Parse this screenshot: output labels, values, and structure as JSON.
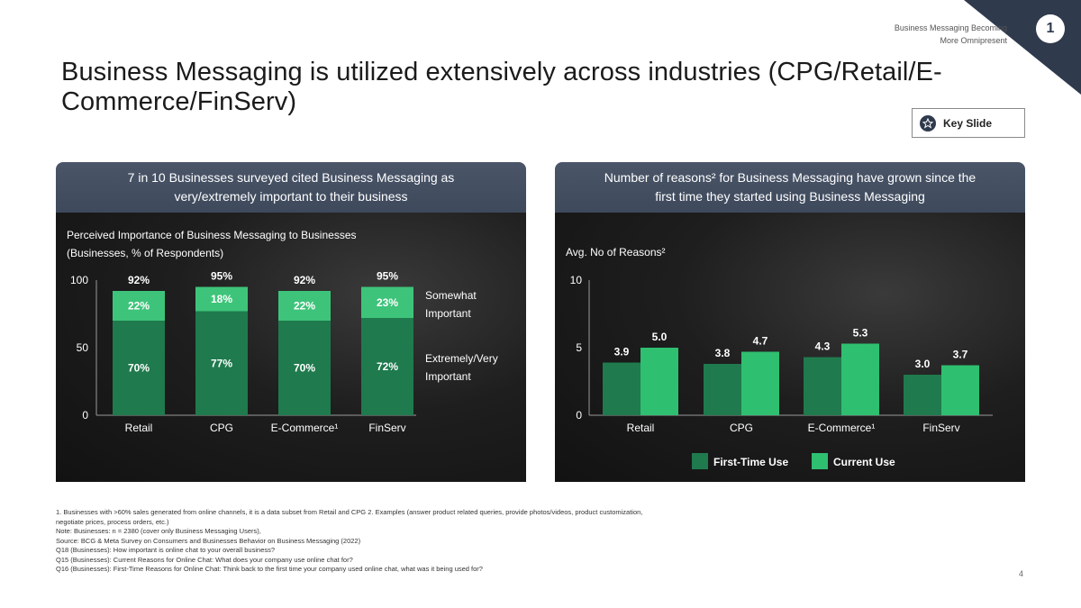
{
  "header": {
    "section_label_line1": "Business Messaging Becoming",
    "section_label_line2": "More Omnipresent",
    "page_badge": "1",
    "title": "Business Messaging is utilized extensively across industries (CPG/Retail/E-Commerce/FinServ)",
    "key_slide_label": "Key Slide",
    "star_icon": "star-icon",
    "accent_color": "#2f3a4d"
  },
  "left_panel": {
    "heading_line1": "7 in 10 Businesses surveyed cited Business Messaging as",
    "heading_line2": "very/extremely important to their business"
  },
  "right_panel": {
    "heading_line1": "Number of reasons² for Business Messaging have grown since the",
    "heading_line2": "first time they started using Business Messaging"
  },
  "chart_data": [
    {
      "type": "bar",
      "stacked": true,
      "title_line1": "Perceived Importance of Business Messaging to Businesses",
      "title_line2": "(Businesses, % of Respondents)",
      "categories": [
        "Retail",
        "CPG",
        "E-Commerce¹",
        "FinServ"
      ],
      "series": [
        {
          "name": "Extremely/Very Important",
          "legend_line1": "Extremely/Very",
          "legend_line2": "Important",
          "color": "#1f7a4d",
          "values": [
            70,
            77,
            70,
            72
          ],
          "labels": [
            "70%",
            "77%",
            "70%",
            "72%"
          ]
        },
        {
          "name": "Somewhat Important",
          "legend_line1": "Somewhat",
          "legend_line2": "Important",
          "color": "#3ec47a",
          "values": [
            22,
            18,
            22,
            23
          ],
          "labels": [
            "22%",
            "18%",
            "22%",
            "23%"
          ]
        }
      ],
      "totals": [
        "92%",
        "95%",
        "92%",
        "95%"
      ],
      "yticks": [
        "0",
        "50",
        "100"
      ],
      "ylim": [
        0,
        100
      ]
    },
    {
      "type": "bar",
      "stacked": false,
      "ylabel": "Avg. No of Reasons²",
      "categories": [
        "Retail",
        "CPG",
        "E-Commerce¹",
        "FinServ"
      ],
      "series": [
        {
          "name": "First-Time Use",
          "color": "#1f7a4d",
          "values": [
            3.9,
            3.8,
            4.3,
            3.0
          ],
          "labels": [
            "3.9",
            "3.8",
            "4.3",
            "3.0"
          ]
        },
        {
          "name": "Current Use",
          "color": "#2fbf70",
          "values": [
            5.0,
            4.7,
            5.3,
            3.7
          ],
          "labels": [
            "5.0",
            "4.7",
            "5.3",
            "3.7"
          ]
        }
      ],
      "yticks": [
        "0",
        "5",
        "10"
      ],
      "ylim": [
        0,
        10
      ],
      "legend_position": "bottom"
    }
  ],
  "footnotes": [
    "1. Businesses with >60% sales generated from online channels, it is a data subset from Retail and CPG 2. Examples (answer product related queries, provide photos/videos, product customization,",
    "negotiate prices, process orders, etc.)",
    "Note: Businesses: n = 2380 (cover only Business Messaging Users),",
    "Source: BCG & Meta Survey on Consumers and Businesses Behavior on Business Messaging (2022)",
    "Q18 (Businesses): How important is online chat to your overall business?",
    "Q15 (Businesses): Current Reasons for Online Chat: What does your company use online chat for?",
    "Q16 (Businesses): First-Time Reasons for Online Chat: Think back to the first time your company used online chat, what was it being used for?"
  ],
  "slide_number": "4"
}
